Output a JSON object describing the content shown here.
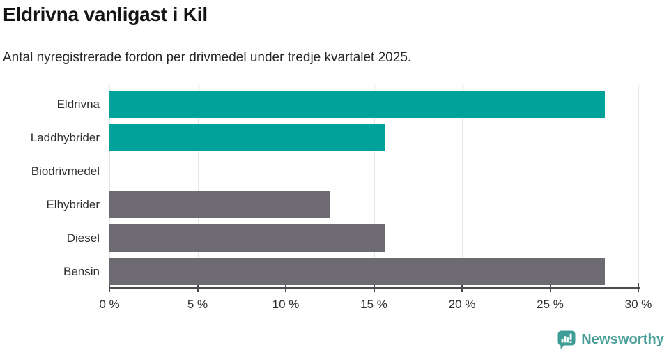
{
  "title": "Eldrivna vanligast i Kil",
  "subtitle": "Antal nyregistrerade fordon per drivmedel under tredje kvartalet 2025.",
  "chart_data": {
    "type": "bar",
    "orientation": "horizontal",
    "categories": [
      "Eldrivna",
      "Laddhybrider",
      "Biodrivmedel",
      "Elhybrider",
      "Diesel",
      "Bensin"
    ],
    "values": [
      28.1,
      15.6,
      0,
      12.5,
      15.6,
      28.1
    ],
    "unit": "%",
    "title": "Eldrivna vanligast i Kil",
    "subtitle": "Antal nyregistrerade fordon per drivmedel under tredje kvartalet 2025.",
    "xlabel": "",
    "ylabel": "",
    "xlim": [
      0,
      30
    ],
    "x_tick_values": [
      0,
      5,
      10,
      15,
      20,
      25,
      30
    ],
    "x_tick_labels": [
      "0 %",
      "5 %",
      "10 %",
      "15 %",
      "20 %",
      "25 %",
      "30 %"
    ],
    "grid": true,
    "legend": false,
    "bar_colors": [
      "#00a29a",
      "#00a29a",
      "#6d6a72",
      "#6d6a72",
      "#6d6a72",
      "#6d6a72"
    ]
  },
  "colors": {
    "highlight_bar": "#00a29a",
    "default_bar": "#6d6a72",
    "gridline": "#e7e7e7",
    "axis": "#4b4b50",
    "title_text": "#141414",
    "body_text": "#2e2e2e"
  },
  "branding": {
    "logo_text": "Newsworthy",
    "logo_icon": "bar-chart-speech-bubble-icon",
    "logo_icon_color": "#3f9d97",
    "logo_text_color": "#4a9e98"
  }
}
